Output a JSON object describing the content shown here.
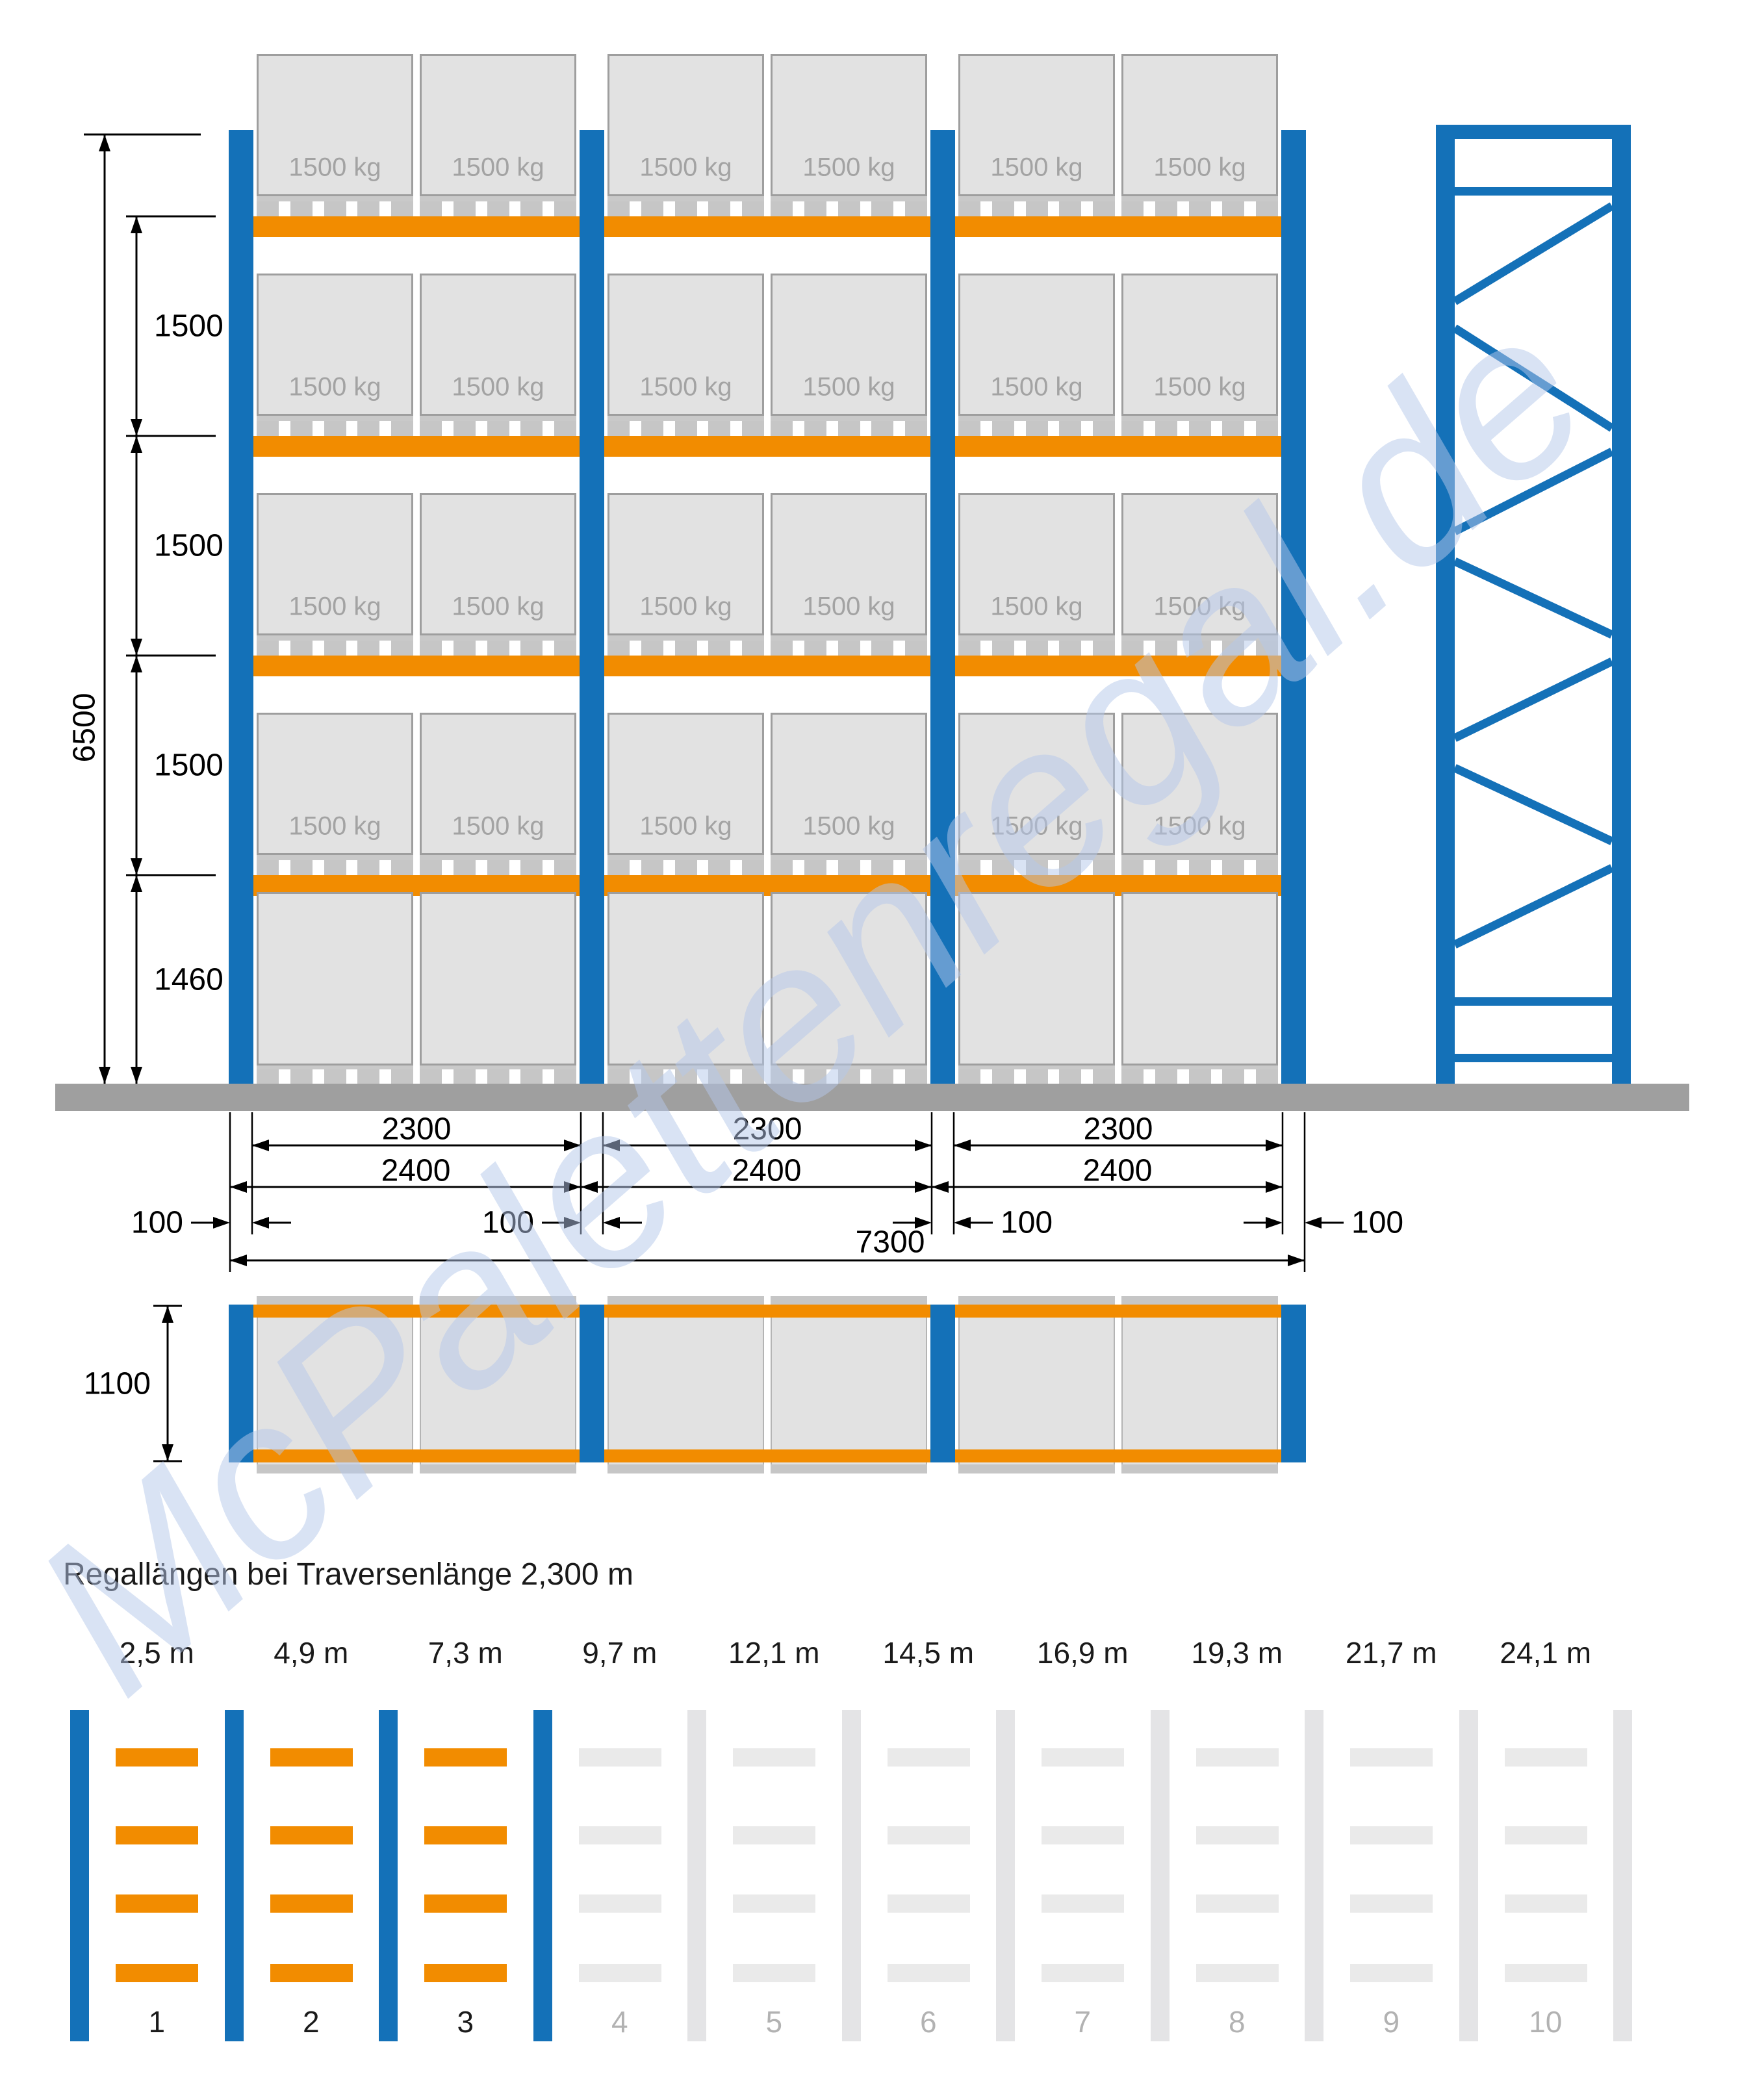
{
  "drawing": {
    "watermark_text": "McPalettenregal.de",
    "front_view": {
      "pallet_load_label": "1500 kg",
      "total_height": "6500",
      "level_heights": [
        "1500",
        "1500",
        "1500",
        "1460"
      ],
      "bay_clear_width": "2300",
      "bay_pitch": "2400",
      "post_width": "100",
      "total_length": "7300",
      "num_bays": 3,
      "num_beam_levels": 4,
      "pallets_per_level": 2
    },
    "top_view": {
      "depth": "1100"
    },
    "length_chart": {
      "title": "Regallängen bei Traversenlänge 2,300 m",
      "bays": [
        {
          "num": "1",
          "length": "2,5 m",
          "included": true
        },
        {
          "num": "2",
          "length": "4,9 m",
          "included": true
        },
        {
          "num": "3",
          "length": "7,3 m",
          "included": true
        },
        {
          "num": "4",
          "length": "9,7 m",
          "included": false
        },
        {
          "num": "5",
          "length": "12,1 m",
          "included": false
        },
        {
          "num": "6",
          "length": "14,5 m",
          "included": false
        },
        {
          "num": "7",
          "length": "16,9 m",
          "included": false
        },
        {
          "num": "8",
          "length": "19,3 m",
          "included": false
        },
        {
          "num": "9",
          "length": "21,7 m",
          "included": false
        },
        {
          "num": "10",
          "length": "24,1 m",
          "included": false
        }
      ]
    },
    "colors": {
      "post_blue": "#1471b8",
      "beam_orange": "#f28c00",
      "pallet_fill": "#e2e2e2",
      "pallet_border": "#9e9e9e",
      "pallet_label": "#a3a3a3",
      "pallet_foot": "#c6c6c6",
      "pallet_deck": "#c9c9c9",
      "floor_gray": "#9f9f9f",
      "inactive_post": "#e4e4e6",
      "inactive_beam": "#eaeaea",
      "inactive_number": "#b2b2b2",
      "dim_black": "#000000",
      "watermark_blue": "#b5c8eb"
    }
  }
}
